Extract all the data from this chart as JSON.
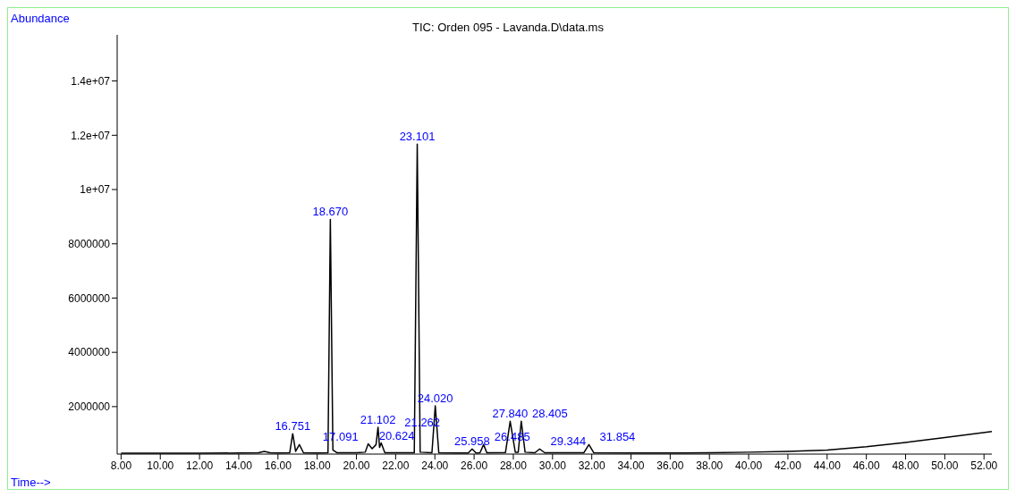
{
  "chart_data": {
    "type": "line",
    "title": "TIC: Orden 095 - Lavanda.D\\data.ms",
    "xlabel": "Time-->",
    "ylabel": "Abundance",
    "x": [
      8,
      10,
      12,
      14,
      15.0,
      15.3,
      15.6,
      16.0,
      16.6,
      16.751,
      16.9,
      17.091,
      17.3,
      18.0,
      18.55,
      18.67,
      18.8,
      19.0,
      20.0,
      20.45,
      20.6,
      20.8,
      21.0,
      21.102,
      21.18,
      21.262,
      21.45,
      22.5,
      22.95,
      23.101,
      23.25,
      23.85,
      24.02,
      24.2,
      25.7,
      25.9,
      26.1,
      26.3,
      26.485,
      26.65,
      27.6,
      27.84,
      28.1,
      28.25,
      28.405,
      28.6,
      29.1,
      29.344,
      29.6,
      31.6,
      31.854,
      32.1,
      34,
      36,
      38,
      40,
      42,
      44,
      46,
      48,
      50,
      52.4
    ],
    "values": [
      280000,
      280000,
      280000,
      290000,
      300000,
      350000,
      300000,
      290000,
      300000,
      1000000,
      350000,
      600000,
      300000,
      290000,
      300000,
      8900000,
      400000,
      300000,
      300000,
      320000,
      630000,
      450000,
      600000,
      1240000,
      500000,
      660000,
      300000,
      300000,
      300000,
      11670000,
      320000,
      300000,
      2030000,
      300000,
      290000,
      440000,
      290000,
      300000,
      600000,
      300000,
      310000,
      1460000,
      320000,
      320000,
      1460000,
      320000,
      300000,
      440000,
      300000,
      300000,
      600000,
      300000,
      290000,
      290000,
      300000,
      320000,
      350000,
      400000,
      520000,
      680000,
      860000,
      1080000
    ],
    "color": "#000000",
    "marker": "none",
    "line_style": "solid",
    "grid": false,
    "legend": false,
    "xlim": [
      7.8,
      52.4
    ],
    "ylim": [
      250000,
      15700000
    ],
    "xticks": [
      {
        "value": 8,
        "label": "8.00"
      },
      {
        "value": 10,
        "label": "10.00"
      },
      {
        "value": 12,
        "label": "12.00"
      },
      {
        "value": 14,
        "label": "14.00"
      },
      {
        "value": 16,
        "label": "16.00"
      },
      {
        "value": 18,
        "label": "18.00"
      },
      {
        "value": 20,
        "label": "20.00"
      },
      {
        "value": 22,
        "label": "22.00"
      },
      {
        "value": 24,
        "label": "24.00"
      },
      {
        "value": 26,
        "label": "26.00"
      },
      {
        "value": 28,
        "label": "28.00"
      },
      {
        "value": 30,
        "label": "30.00"
      },
      {
        "value": 32,
        "label": "32.00"
      },
      {
        "value": 34,
        "label": "34.00"
      },
      {
        "value": 36,
        "label": "36.00"
      },
      {
        "value": 38,
        "label": "38.00"
      },
      {
        "value": 40,
        "label": "40.00"
      },
      {
        "value": 42,
        "label": "42.00"
      },
      {
        "value": 44,
        "label": "44.00"
      },
      {
        "value": 46,
        "label": "46.00"
      },
      {
        "value": 48,
        "label": "48.00"
      },
      {
        "value": 50,
        "label": "50.00"
      },
      {
        "value": 52,
        "label": "52.00"
      }
    ],
    "yticks": [
      2000000,
      4000000,
      6000000,
      8000000,
      {
        "value": 10000000,
        "label": "1e+07"
      },
      {
        "value": 12000000,
        "label": "1.2e+07"
      },
      {
        "value": 14000000,
        "label": "1.4e+07"
      }
    ],
    "annotations": [
      {
        "text": "16.751",
        "x": 16.751,
        "y": 1000000
      },
      {
        "text": "17.091",
        "x": 17.091,
        "y": 600000
      },
      {
        "text": "18.670",
        "x": 18.67,
        "y": 8900000
      },
      {
        "text": "20.624",
        "x": 20.6,
        "y": 630000
      },
      {
        "text": "21.102",
        "x": 21.102,
        "y": 1240000
      },
      {
        "text": "21.262",
        "x": 21.262,
        "y": 660000
      },
      {
        "text": "23.101",
        "x": 23.101,
        "y": 11670000
      },
      {
        "text": "24.020",
        "x": 24.02,
        "y": 2030000
      },
      {
        "text": "25.958",
        "x": 25.9,
        "y": 440000
      },
      {
        "text": "26.485",
        "x": 26.485,
        "y": 600000
      },
      {
        "text": "27.840",
        "x": 27.84,
        "y": 1460000
      },
      {
        "text": "28.405",
        "x": 28.405,
        "y": 1460000
      },
      {
        "text": "29.344",
        "x": 29.344,
        "y": 440000
      },
      {
        "text": "31.854",
        "x": 31.854,
        "y": 600000
      }
    ]
  }
}
